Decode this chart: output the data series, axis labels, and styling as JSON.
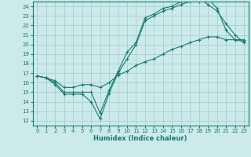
{
  "xlabel": "Humidex (Indice chaleur)",
  "bg_color": "#cceaea",
  "grid_color": "#aad4d4",
  "line_color": "#1a7a6e",
  "xlim": [
    -0.5,
    23.5
  ],
  "ylim": [
    11.5,
    24.5
  ],
  "xticks": [
    0,
    1,
    2,
    3,
    4,
    5,
    6,
    7,
    8,
    9,
    10,
    11,
    12,
    13,
    14,
    15,
    16,
    17,
    18,
    19,
    20,
    21,
    22,
    23
  ],
  "yticks": [
    12,
    13,
    14,
    15,
    16,
    17,
    18,
    19,
    20,
    21,
    22,
    23,
    24
  ],
  "line1_x": [
    0,
    1,
    2,
    3,
    4,
    5,
    6,
    7,
    8,
    9,
    10,
    11,
    12,
    13,
    14,
    15,
    16,
    17,
    18,
    19,
    20,
    21,
    22,
    23
  ],
  "line1_y": [
    16.7,
    16.5,
    15.8,
    14.8,
    14.8,
    14.8,
    14.0,
    12.2,
    14.9,
    17.0,
    18.5,
    20.0,
    22.5,
    23.0,
    23.5,
    23.8,
    24.2,
    24.5,
    24.5,
    24.8,
    23.8,
    21.5,
    20.5,
    20.3
  ],
  "line2_x": [
    0,
    1,
    2,
    3,
    4,
    5,
    6,
    7,
    8,
    9,
    10,
    11,
    12,
    13,
    14,
    15,
    16,
    17,
    18,
    19,
    20,
    21,
    22,
    23
  ],
  "line2_y": [
    16.7,
    16.5,
    16.0,
    15.0,
    15.0,
    15.0,
    15.0,
    12.8,
    15.2,
    17.2,
    19.2,
    20.2,
    22.8,
    23.2,
    23.8,
    24.0,
    24.5,
    24.8,
    24.8,
    24.2,
    23.5,
    22.2,
    21.0,
    20.2
  ],
  "line3_x": [
    0,
    1,
    2,
    3,
    4,
    5,
    6,
    7,
    8,
    9,
    10,
    11,
    12,
    13,
    14,
    15,
    16,
    17,
    18,
    19,
    20,
    21,
    22,
    23
  ],
  "line3_y": [
    16.7,
    16.5,
    16.2,
    15.5,
    15.5,
    15.8,
    15.8,
    15.5,
    16.0,
    16.8,
    17.2,
    17.8,
    18.2,
    18.5,
    19.0,
    19.5,
    19.8,
    20.2,
    20.5,
    20.8,
    20.8,
    20.5,
    20.5,
    20.5
  ]
}
